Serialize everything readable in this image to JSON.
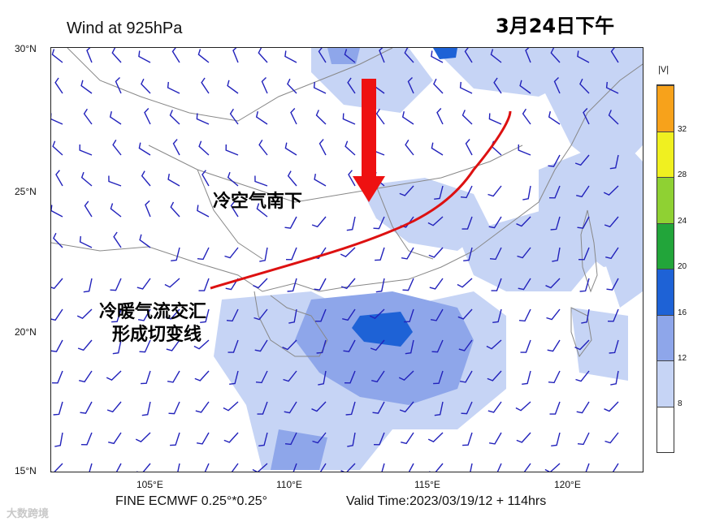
{
  "header": {
    "title": "Wind at 925hPa",
    "date_label": "3月24日下午"
  },
  "map": {
    "lat_labels": [
      "30°N",
      "25°N",
      "20°N",
      "15°N"
    ],
    "lon_labels": [
      "105°E",
      "110°E",
      "115°E",
      "120°E"
    ],
    "annotations": {
      "cold_air": "冷空气南下",
      "shear_line_1": "冷暖气流交汇",
      "shear_line_2": "形成切变线"
    },
    "colors": {
      "arrow": "#ee1111",
      "shear_line": "#dd1111",
      "wind_barb": "#2222bb",
      "border": "#888888"
    }
  },
  "colorbar": {
    "unit": "|V|",
    "labels": [
      "8",
      "12",
      "16",
      "20",
      "24",
      "28",
      "32"
    ],
    "colors": [
      "#ffffff",
      "#c6d4f5",
      "#8ea6ea",
      "#1e62d6",
      "#22a53a",
      "#8fd133",
      "#f0f020",
      "#f7a21b"
    ]
  },
  "footer": {
    "product": "FINE ECMWF 0.25°*0.25°",
    "valid_time": "Valid Time:2023/03/19/12 + 114hrs",
    "watermark": "大数跨境"
  }
}
